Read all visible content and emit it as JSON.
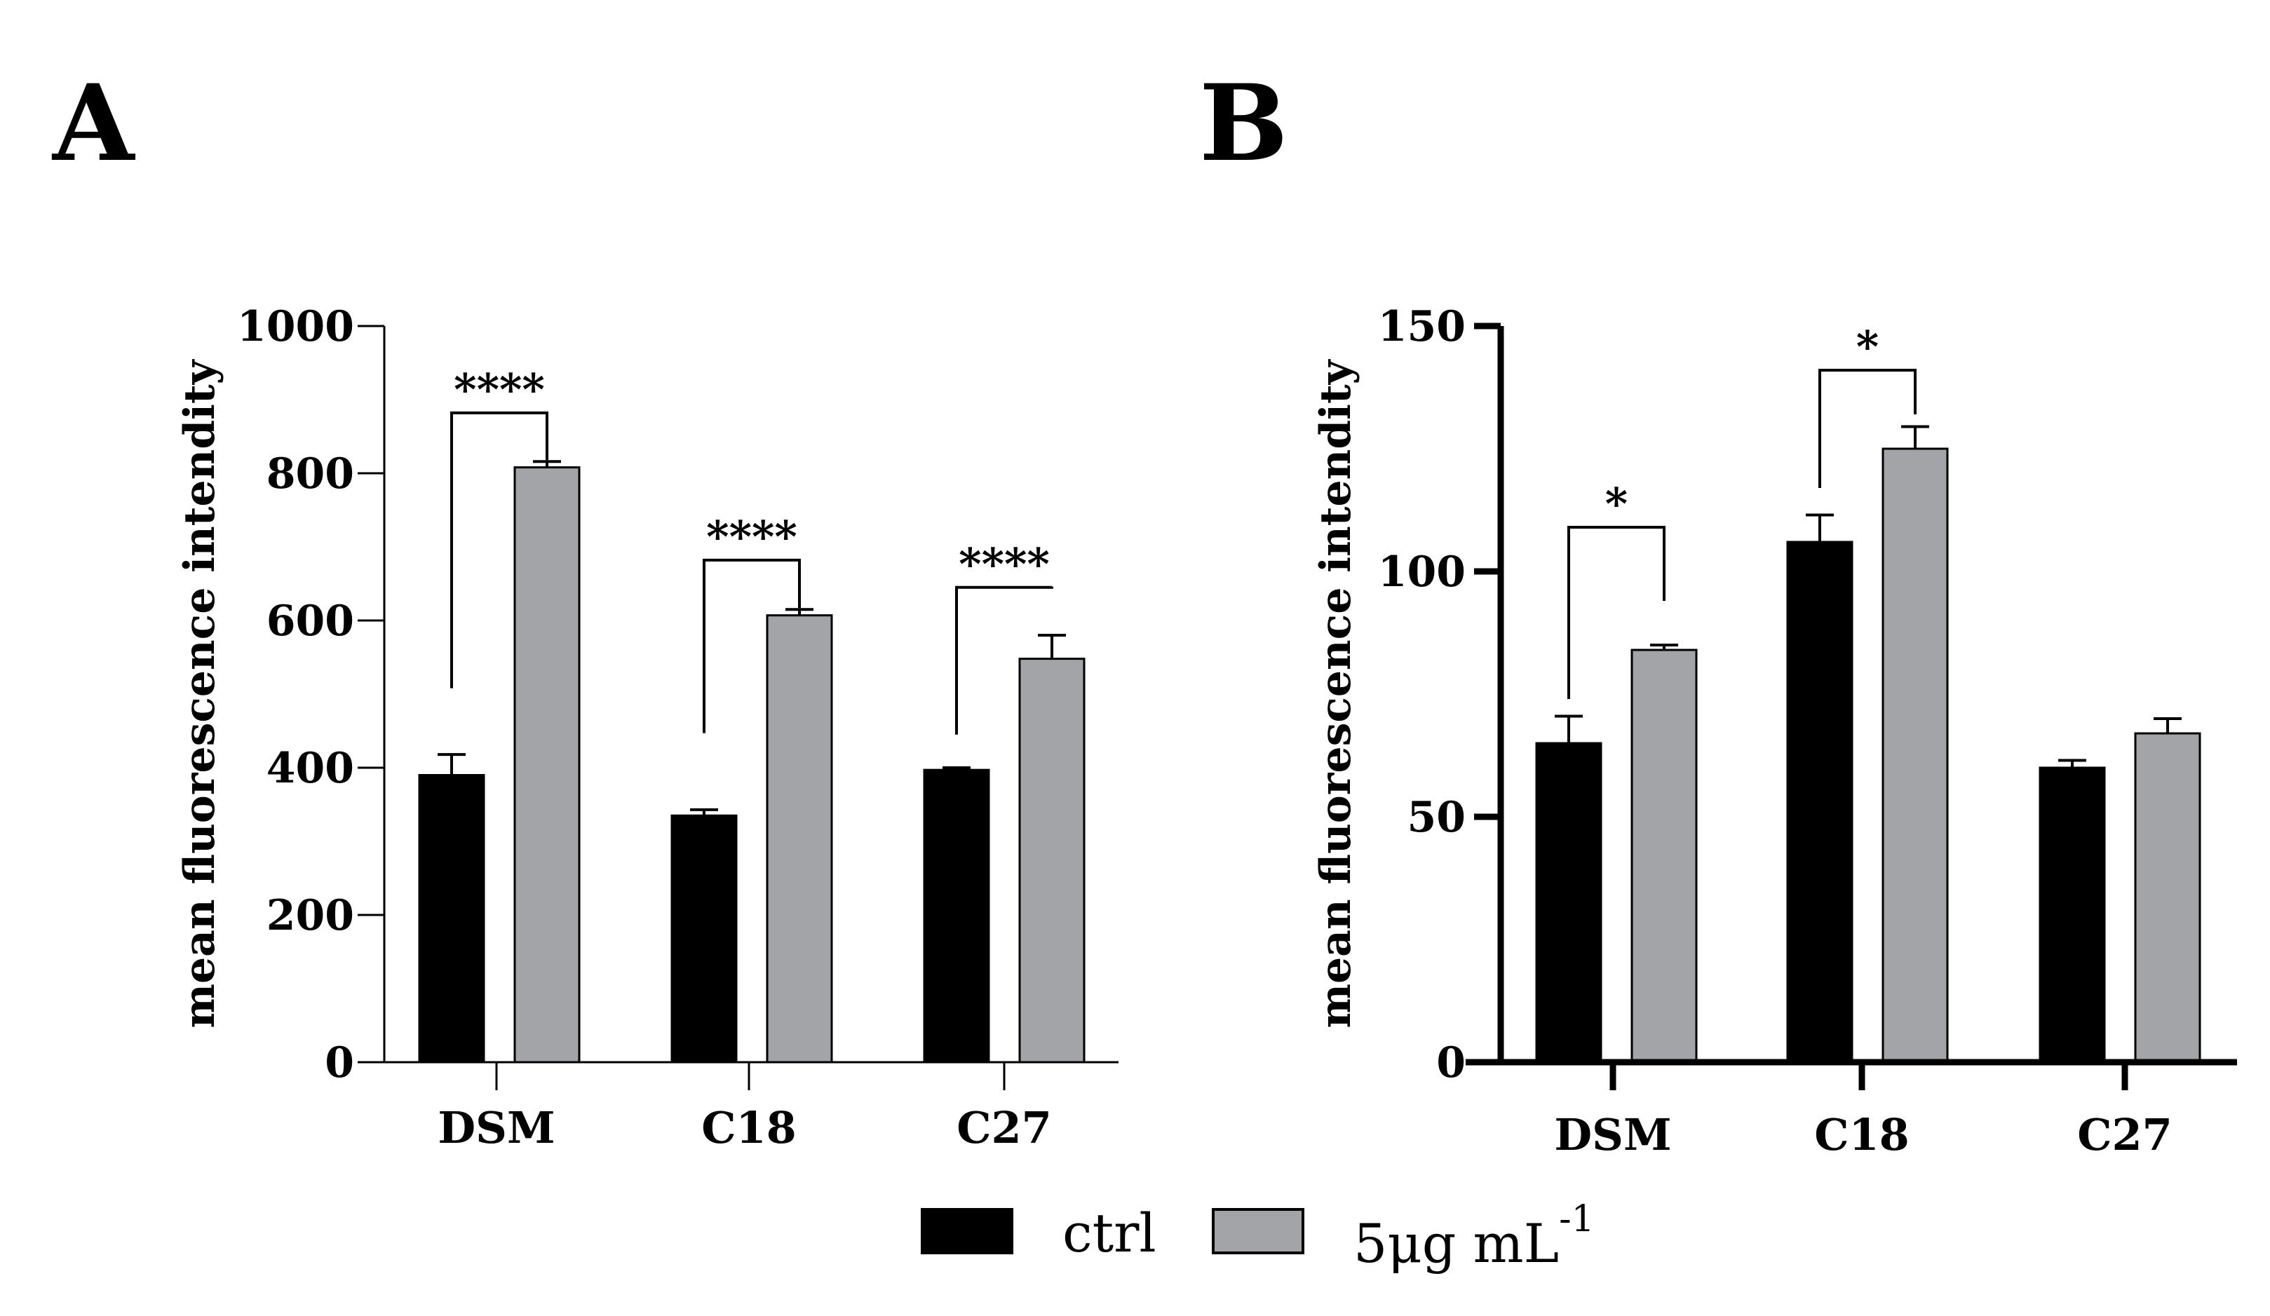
{
  "panels": [
    {
      "letter": "A"
    },
    {
      "letter": "B"
    }
  ],
  "legend": {
    "items": [
      {
        "label": "ctrl",
        "color": "#000000"
      },
      {
        "label": "5μg mL",
        "superscript": "-1",
        "color": "#a3a4a8"
      }
    ]
  },
  "chart_data": [
    {
      "type": "bar",
      "panel": "A",
      "title": "",
      "xlabel": "",
      "ylabel": "mean fluorescence intendity",
      "ylim": [
        0,
        1000
      ],
      "yticks": [
        0,
        200,
        400,
        600,
        800,
        1000
      ],
      "categories": [
        "DSM",
        "C18",
        "C27"
      ],
      "series": [
        {
          "name": "ctrl",
          "values": [
            390,
            335,
            397
          ],
          "errors": [
            28,
            8,
            3
          ],
          "color": "#000000"
        },
        {
          "name": "5μg mL-1",
          "values": [
            808,
            607,
            548
          ],
          "errors": [
            8,
            8,
            32
          ],
          "color": "#a3a4a8"
        }
      ],
      "significance": [
        {
          "category": "DSM",
          "label": "****",
          "left_level": 508,
          "right_level": 818,
          "bracket_level": 882
        },
        {
          "category": "C18",
          "label": "****",
          "left_level": 447,
          "right_level": 617,
          "bracket_level": 682
        },
        {
          "category": "C27",
          "label": "****",
          "left_level": 445,
          "right_level": 646,
          "bracket_level": 645
        }
      ]
    },
    {
      "type": "bar",
      "panel": "B",
      "title": "",
      "xlabel": "",
      "ylabel": "mean fluorescence intendity",
      "ylim": [
        0,
        150
      ],
      "yticks": [
        0,
        50,
        100,
        150
      ],
      "categories": [
        "DSM",
        "C18",
        "C27"
      ],
      "series": [
        {
          "name": "ctrl",
          "values": [
            65,
            106,
            60
          ],
          "errors": [
            5.5,
            5.5,
            1.5
          ],
          "color": "#000000"
        },
        {
          "name": "5μg mL-1",
          "values": [
            84,
            125,
            67
          ],
          "errors": [
            1,
            4.5,
            3
          ],
          "color": "#a3a4a8"
        }
      ],
      "significance": [
        {
          "category": "DSM",
          "label": "*",
          "left_level": 74,
          "right_level": 94,
          "bracket_level": 109
        },
        {
          "category": "C18",
          "label": "*",
          "left_level": 117,
          "right_level": 132,
          "bracket_level": 141
        }
      ]
    }
  ]
}
